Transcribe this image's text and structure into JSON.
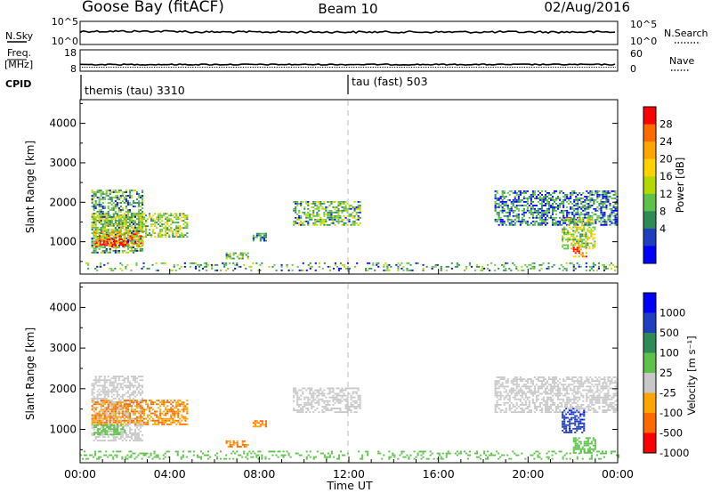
{
  "header": {
    "station": "Goose Bay (fitACF)",
    "beam": "Beam 10",
    "date": "02/Aug/2016"
  },
  "aux": {
    "nsky_label": "N.Sky",
    "nsky_ticks": [
      "10^5",
      "10^0"
    ],
    "nsearch_label": "N.Search",
    "nsearch_ticks": [
      "10^5",
      "10^0"
    ],
    "freq_label": "Freq.",
    "freq_unit": "[MHz]",
    "freq_ticks": [
      "18",
      "8"
    ],
    "nave_label": "Nave",
    "nave_ticks": [
      "60",
      "0"
    ],
    "cpid_label": "CPID",
    "cpid_segments": [
      {
        "name": "themis (tau) 3310",
        "start_hr": 0
      },
      {
        "name": "tau (fast) 503",
        "start_hr": 12
      }
    ]
  },
  "chart_data": [
    {
      "type": "heatmap",
      "name": "Power",
      "xlabel": "",
      "ylabel": "Slant Range [km]",
      "xlim": [
        0,
        24
      ],
      "ylim": [
        180,
        4600
      ],
      "yticks": [
        1000,
        2000,
        3000,
        4000
      ],
      "colorbar": {
        "label": "Power [dB]",
        "ticks": [
          "28",
          "24",
          "20",
          "16",
          "12",
          "8",
          "4"
        ],
        "colors": [
          "#ff0000",
          "#ff6a00",
          "#ffa500",
          "#ffd200",
          "#b5d900",
          "#5ec24a",
          "#2e8b57",
          "#1f3fbf",
          "#0000ff"
        ]
      },
      "regions": [
        {
          "t": [
            0.5,
            2.8
          ],
          "r": [
            700,
            2300
          ],
          "v": 8
        },
        {
          "t": [
            0.5,
            4.8
          ],
          "r": [
            1100,
            1700
          ],
          "v": 12
        },
        {
          "t": [
            0.6,
            2.8
          ],
          "r": [
            850,
            1250
          ],
          "v": 20
        },
        {
          "t": [
            0.7,
            2.0
          ],
          "r": [
            900,
            1050
          ],
          "v": 28
        },
        {
          "t": [
            6.5,
            7.5
          ],
          "r": [
            550,
            700
          ],
          "v": 10
        },
        {
          "t": [
            7.7,
            8.3
          ],
          "r": [
            1000,
            1200
          ],
          "v": 6
        },
        {
          "t": [
            9.5,
            12.5
          ],
          "r": [
            1400,
            2000
          ],
          "v": 10
        },
        {
          "t": [
            18.5,
            24.0
          ],
          "r": [
            1400,
            2300
          ],
          "v": 6
        },
        {
          "t": [
            21.5,
            23.0
          ],
          "r": [
            800,
            1600
          ],
          "v": 14
        },
        {
          "t": [
            22.0,
            22.6
          ],
          "r": [
            600,
            850
          ],
          "v": 28
        },
        {
          "t": [
            0.0,
            24.0
          ],
          "r": [
            250,
            450
          ],
          "v": 8
        }
      ]
    },
    {
      "type": "heatmap",
      "name": "Velocity",
      "xlabel": "Time UT",
      "ylabel": "Slant Range [km]",
      "xlim": [
        0,
        24
      ],
      "ylim": [
        180,
        4600
      ],
      "yticks": [
        1000,
        2000,
        3000,
        4000
      ],
      "xticks": [
        "00:00",
        "04:00",
        "08:00",
        "12:00",
        "16:00",
        "20:00",
        "00:00"
      ],
      "colorbar": {
        "label": "Velocity [m s⁻¹]",
        "ticks": [
          "1000",
          "500",
          "100",
          "25",
          "-25",
          "-100",
          "-500",
          "-1000"
        ],
        "colors": [
          "#0000ff",
          "#1f3fbf",
          "#2e8b57",
          "#5ec24a",
          "#c8c8c8",
          "#ffa500",
          "#ff6a00",
          "#ff0000"
        ]
      },
      "regions": [
        {
          "t": [
            0.5,
            2.8
          ],
          "r": [
            700,
            2300
          ],
          "v": 0
        },
        {
          "t": [
            0.5,
            4.8
          ],
          "r": [
            1100,
            1700
          ],
          "v": -100
        },
        {
          "t": [
            0.6,
            2.0
          ],
          "r": [
            850,
            1100
          ],
          "v": 60
        },
        {
          "t": [
            6.5,
            7.5
          ],
          "r": [
            550,
            700
          ],
          "v": -100
        },
        {
          "t": [
            7.7,
            8.3
          ],
          "r": [
            1000,
            1200
          ],
          "v": -100
        },
        {
          "t": [
            9.5,
            12.5
          ],
          "r": [
            1400,
            2000
          ],
          "v": 0
        },
        {
          "t": [
            18.5,
            24.0
          ],
          "r": [
            1400,
            2300
          ],
          "v": 0
        },
        {
          "t": [
            21.5,
            22.5
          ],
          "r": [
            900,
            1500
          ],
          "v": 800
        },
        {
          "t": [
            22.0,
            23.0
          ],
          "r": [
            400,
            800
          ],
          "v": 60
        },
        {
          "t": [
            0.0,
            24.0
          ],
          "r": [
            250,
            450
          ],
          "v": 60
        }
      ]
    }
  ]
}
